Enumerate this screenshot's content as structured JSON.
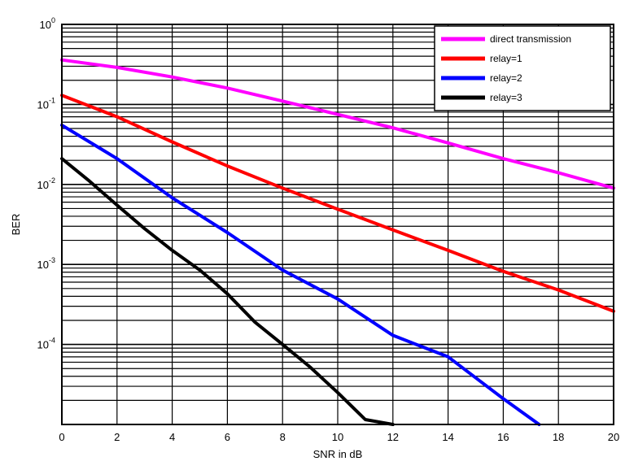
{
  "chart_data": {
    "type": "line",
    "xlabel": "SNR in dB",
    "ylabel": "BER",
    "xlim": [
      0,
      20
    ],
    "ylim": [
      1e-05,
      1
    ],
    "yscale": "log",
    "grid": true,
    "legend_position": "top-right",
    "x_ticks": [
      "0",
      "2",
      "4",
      "6",
      "8",
      "10",
      "12",
      "14",
      "16",
      "18",
      "20"
    ],
    "y_ticks": [
      {
        "value": 1,
        "base": "10",
        "exp": "0"
      },
      {
        "value": 0.1,
        "base": "10",
        "exp": "-1"
      },
      {
        "value": 0.01,
        "base": "10",
        "exp": "-2"
      },
      {
        "value": 0.001,
        "base": "10",
        "exp": "-3"
      },
      {
        "value": 0.0001,
        "base": "10",
        "exp": "-4"
      }
    ],
    "series": [
      {
        "name": "direct transmission",
        "color": "#ff00ff",
        "x": [
          0,
          2,
          4,
          6,
          8,
          10,
          12,
          14,
          16,
          18,
          20
        ],
        "y": [
          0.36,
          0.29,
          0.22,
          0.16,
          0.11,
          0.075,
          0.051,
          0.033,
          0.021,
          0.014,
          0.009
        ]
      },
      {
        "name": "relay=1",
        "color": "#ff0000",
        "x": [
          0,
          2,
          4,
          6,
          8,
          10,
          12,
          14,
          16,
          18,
          20
        ],
        "y": [
          0.13,
          0.07,
          0.034,
          0.017,
          0.009,
          0.0049,
          0.0027,
          0.0015,
          0.00082,
          0.00048,
          0.00026
        ]
      },
      {
        "name": "relay=2",
        "color": "#0000ff",
        "x": [
          0,
          2,
          4,
          6,
          8,
          10,
          12,
          14,
          16,
          17.3
        ],
        "y": [
          0.055,
          0.021,
          0.0068,
          0.0025,
          0.00085,
          0.00037,
          0.00013,
          7e-05,
          2.1e-05,
          1e-05
        ]
      },
      {
        "name": "relay=3",
        "color": "#000000",
        "x": [
          0,
          1,
          2,
          3,
          4,
          5,
          6,
          7,
          8,
          9,
          10,
          11,
          12
        ],
        "y": [
          0.021,
          0.011,
          0.0055,
          0.0028,
          0.0015,
          0.00085,
          0.00043,
          0.00019,
          0.0001,
          5.2e-05,
          2.5e-05,
          1.15e-05,
          1e-05
        ]
      }
    ]
  }
}
